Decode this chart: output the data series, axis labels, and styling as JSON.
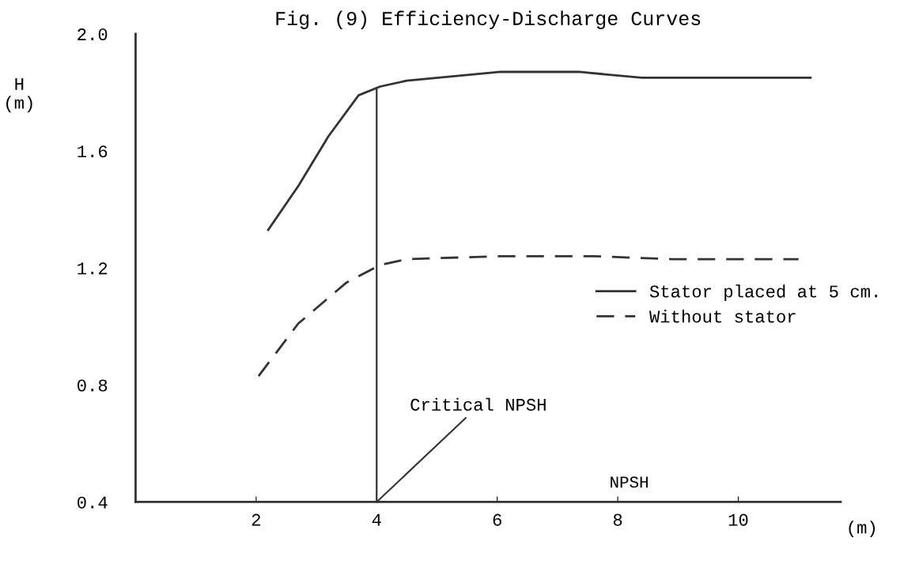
{
  "chart_data": {
    "type": "line",
    "title": "Fig. (9) Efficiency-Discharge Curves",
    "ylabel": "H\n(m)",
    "xlabel": "(m)",
    "annotations": [
      "NPSH",
      {
        "text": "Critical NPSH",
        "x": 4,
        "y": 0.4
      }
    ],
    "series": [
      {
        "name": "Stator placed at 5 cm.",
        "color": "#333333",
        "line_style": "solid",
        "x": [
          2.2,
          2.7,
          3.2,
          3.7,
          4.06,
          4.5,
          6.06,
          7.35,
          8.4,
          11.2
        ],
        "values": [
          1.33,
          1.48,
          1.65,
          1.79,
          1.82,
          1.84,
          1.87,
          1.87,
          1.85,
          1.85
        ]
      },
      {
        "name": "Without stator",
        "color": "#333333",
        "line_style": "dashed",
        "x": [
          2.04,
          2.7,
          3.5,
          4.06,
          4.5,
          6.06,
          7.6,
          8.9,
          11.0
        ],
        "values": [
          0.83,
          1.01,
          1.15,
          1.21,
          1.23,
          1.24,
          1.24,
          1.23,
          1.23
        ]
      }
    ],
    "ref_lines": [
      {
        "axis": "x",
        "value": 4,
        "color": "#333333"
      }
    ],
    "xlim": [
      0,
      11.7
    ],
    "ylim": [
      0.4,
      2.0
    ],
    "xticks": [
      2,
      4,
      6,
      8,
      10
    ],
    "yticks": [
      {
        "value": 0.4,
        "label": "0.4"
      },
      {
        "value": 0.8,
        "label": "0.8"
      },
      {
        "value": 1.2,
        "label": "1.2"
      },
      {
        "value": 1.6,
        "label": "1.6"
      },
      {
        "value": 2.0,
        "label": "2.0"
      }
    ],
    "grid": false,
    "legend": "right",
    "marker": "none"
  }
}
